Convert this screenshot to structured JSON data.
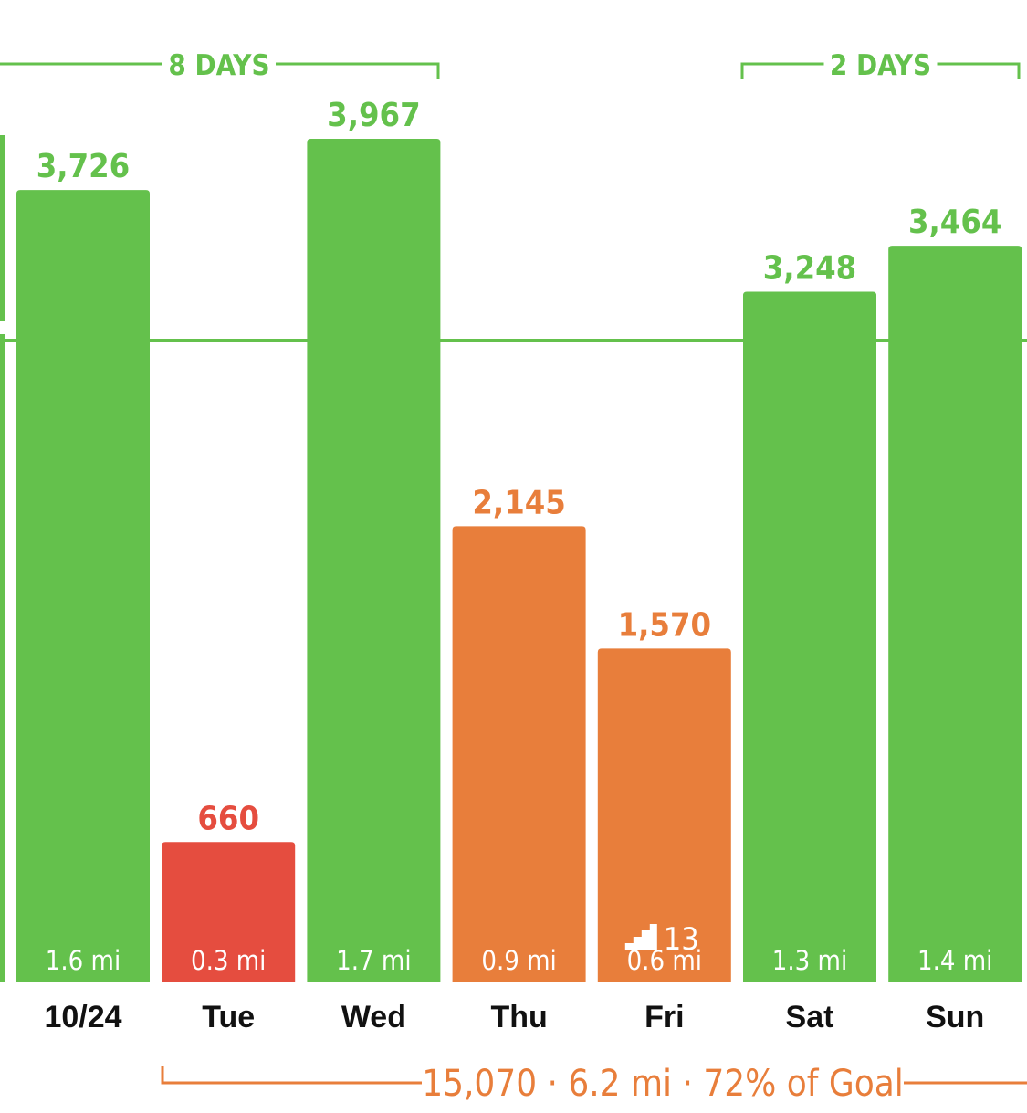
{
  "colors": {
    "green": "#64c14c",
    "orange": "#e87e3b",
    "red": "#e54d3f",
    "axis_text": "#111111"
  },
  "streaks": [
    {
      "label": "8 DAYS",
      "color": "green"
    },
    {
      "label": "2 DAYS",
      "color": "green"
    }
  ],
  "summary": {
    "text": "15,070 · 6.2 mi · 72% of Goal",
    "color": "orange"
  },
  "goal_line": {
    "visible": true,
    "color": "green"
  },
  "chart_data": {
    "type": "bar",
    "categories": [
      "10/24",
      "Tue",
      "Wed",
      "Thu",
      "Fri",
      "Sat",
      "Sun"
    ],
    "values": [
      3726,
      660,
      3967,
      2145,
      1570,
      3248,
      3464
    ],
    "value_labels": [
      "3,726",
      "660",
      "3,967",
      "2,145",
      "1,570",
      "3,248",
      "3,464"
    ],
    "distances": [
      "1.6 mi",
      "0.3 mi",
      "1.7 mi",
      "0.9 mi",
      "0.6 mi",
      "1.3 mi",
      "1.4 mi"
    ],
    "bar_colors": [
      "green",
      "red",
      "green",
      "orange",
      "orange",
      "green",
      "green"
    ],
    "floors": [
      null,
      null,
      null,
      null,
      "13",
      null,
      null
    ],
    "floors_icon": "stairs-icon",
    "ylim": [
      0,
      3967
    ],
    "title": "",
    "xlabel": "",
    "ylabel": ""
  }
}
